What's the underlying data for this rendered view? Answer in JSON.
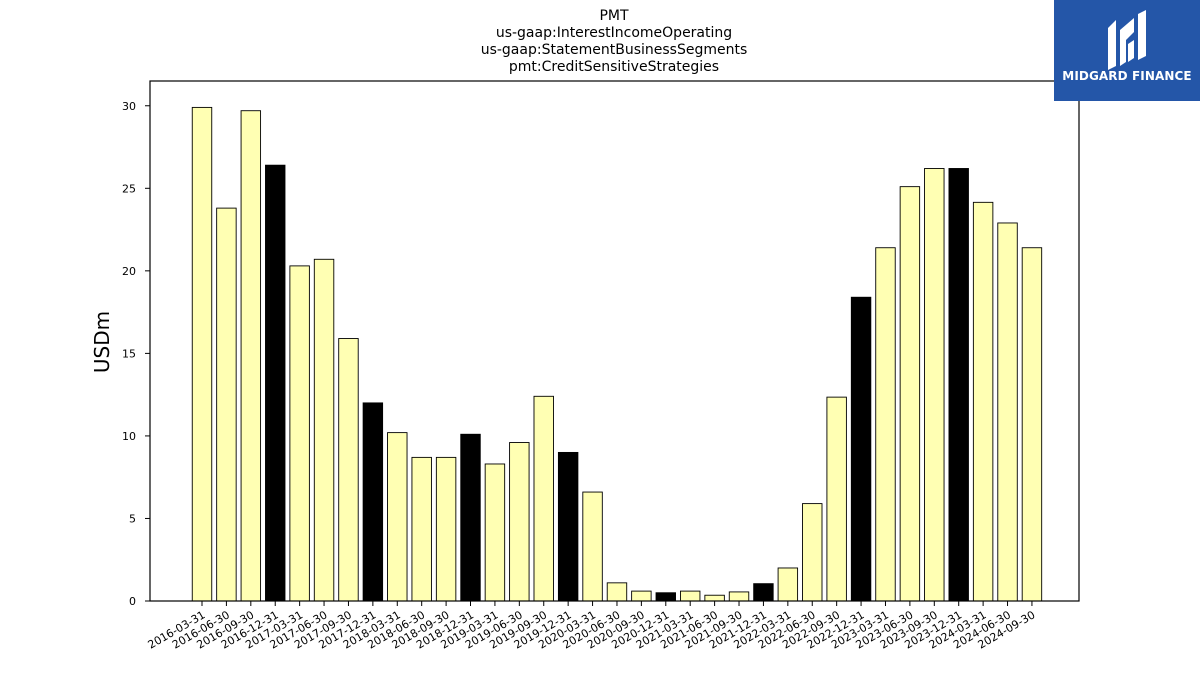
{
  "logo": {
    "text": "MIDGARD FINANCE",
    "background": "#2456a8",
    "icon": "midgard-m-logo-icon"
  },
  "colors": {
    "bar_default": "#ffffb3",
    "bar_highlight": "#000000",
    "bar_edge": "#000000"
  },
  "chart_data": {
    "type": "bar",
    "title_lines": [
      "PMT",
      "us-gaap:InterestIncomeOperating",
      "us-gaap:StatementBusinessSegments",
      "pmt:CreditSensitiveStrategies"
    ],
    "xlabel": "",
    "ylabel": "USDm",
    "ylim": [
      0,
      31.5
    ],
    "yticks": [
      0,
      5,
      10,
      15,
      20,
      25,
      30
    ],
    "grid": false,
    "categories": [
      "2016-03-31",
      "2016-06-30",
      "2016-09-30",
      "2016-12-31",
      "2017-03-31",
      "2017-06-30",
      "2017-09-30",
      "2017-12-31",
      "2018-03-31",
      "2018-06-30",
      "2018-09-30",
      "2018-12-31",
      "2019-03-31",
      "2019-06-30",
      "2019-09-30",
      "2019-12-31",
      "2020-03-31",
      "2020-06-30",
      "2020-09-30",
      "2020-12-31",
      "2021-03-31",
      "2021-06-30",
      "2021-09-30",
      "2021-12-31",
      "2022-03-31",
      "2022-06-30",
      "2022-09-30",
      "2022-12-31",
      "2023-03-31",
      "2023-06-30",
      "2023-09-30",
      "2023-12-31",
      "2024-03-31",
      "2024-06-30",
      "2024-09-30"
    ],
    "values": [
      29.9,
      23.8,
      29.7,
      26.4,
      20.3,
      20.7,
      15.9,
      12.0,
      10.2,
      8.7,
      8.7,
      10.1,
      8.3,
      9.6,
      12.4,
      9.0,
      6.6,
      1.1,
      0.6,
      0.5,
      0.6,
      0.35,
      0.55,
      1.05,
      2.0,
      5.9,
      12.35,
      18.4,
      21.4,
      25.1,
      26.2,
      26.2,
      24.15,
      22.9,
      21.4
    ],
    "highlight": [
      false,
      false,
      false,
      true,
      false,
      false,
      false,
      true,
      false,
      false,
      false,
      true,
      false,
      false,
      false,
      true,
      false,
      false,
      false,
      true,
      false,
      false,
      false,
      true,
      false,
      false,
      false,
      true,
      false,
      false,
      false,
      true,
      false,
      false,
      false
    ]
  }
}
